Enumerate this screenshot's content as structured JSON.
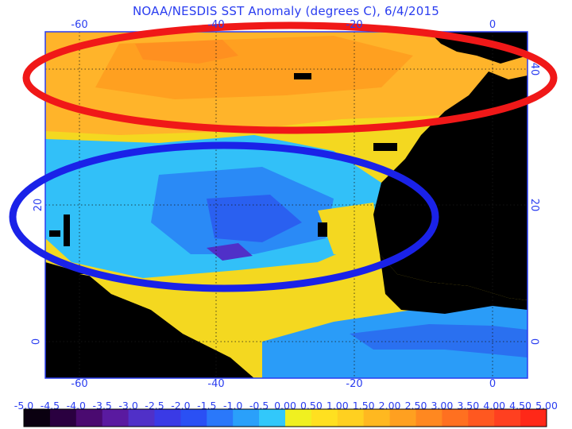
{
  "title": "NOAA/NESDIS SST Anomaly (degrees C), 6/4/2015",
  "axes": {
    "longitude_ticks": [
      "-60",
      "-40",
      "-20",
      "0"
    ],
    "latitude_ticks": [
      "20",
      "0"
    ],
    "right_latitude_ticks": [
      "40",
      "20",
      "0"
    ]
  },
  "colorbar": {
    "labels": [
      "-5.0",
      "-4.5",
      "-4.0",
      "-3.5",
      "-3.0",
      "-2.5",
      "-2.0",
      "-1.5",
      "-1.0",
      "-0.5",
      "0.00",
      "0.50",
      "1.00",
      "1.50",
      "2.00",
      "2.50",
      "3.00",
      "3.50",
      "4.00",
      "4.50",
      "5.00"
    ],
    "colors": [
      "#0a0010",
      "#2a0040",
      "#4a0a70",
      "#5a1aa0",
      "#5030c8",
      "#3a3ae6",
      "#2a50f4",
      "#2a78fa",
      "#2aa0fa",
      "#32c8fa",
      "#f0f020",
      "#ffe020",
      "#ffd020",
      "#ffb820",
      "#ffa020",
      "#ff8820",
      "#ff7020",
      "#ff5820",
      "#ff4020",
      "#ff2818"
    ]
  },
  "highlights": [
    {
      "name": "warm-anomaly-region",
      "color": "#f01818"
    },
    {
      "name": "cool-anomaly-region",
      "color": "#1a22e8"
    }
  ],
  "colors": {
    "land": "#000000",
    "frame": "#2a3df0",
    "warm": "#ffa830",
    "neutral": "#f4d820",
    "cool": "#32b4f8"
  }
}
